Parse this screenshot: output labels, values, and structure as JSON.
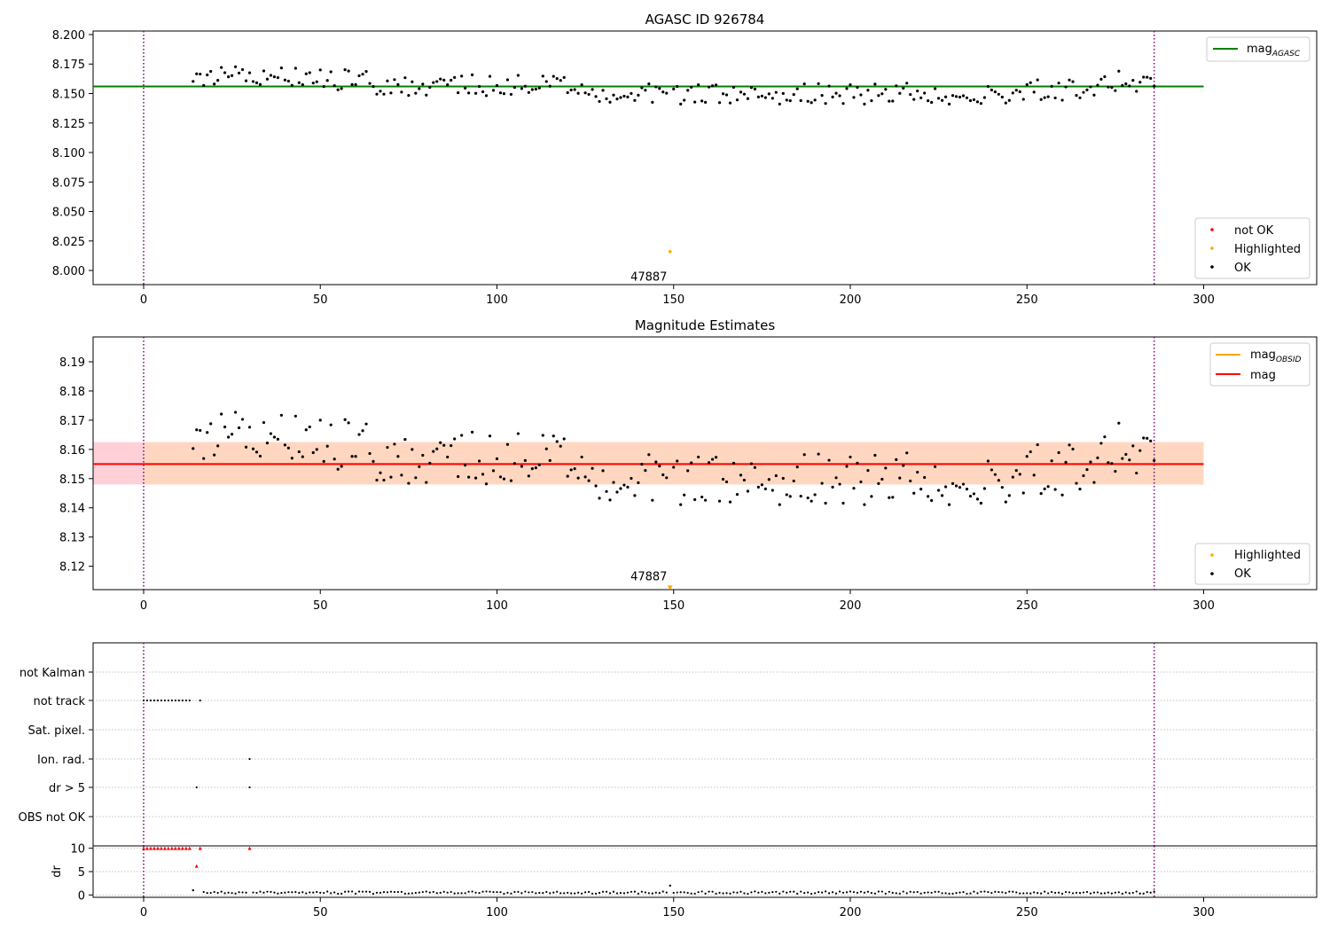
{
  "colors": {
    "ok": "#000000",
    "not_ok": "#ff0000",
    "highlighted": "#ffa500",
    "agasc_line": "#008000",
    "mag_line": "#ff0000",
    "obsid_line": "#ffa500",
    "band_outer": "#ffc0cb",
    "band_inner": "#ffdab9",
    "vline": "#800080",
    "grid": "#b0b0b0"
  },
  "chart_data": [
    {
      "type": "scatter",
      "title": "AGASC ID 926784",
      "xlim": [
        -14.3,
        332
      ],
      "ylim": [
        7.988,
        8.203
      ],
      "x_ticks": [
        0,
        50,
        100,
        150,
        200,
        250,
        300
      ],
      "y_ticks": [
        "8.000",
        "8.025",
        "8.050",
        "8.075",
        "8.100",
        "8.125",
        "8.150",
        "8.175",
        "8.200"
      ],
      "vlines": [
        0,
        286
      ],
      "hline": {
        "name": "mag_AGASC",
        "y": 8.156,
        "x": [
          -14.3,
          300
        ]
      },
      "series": [
        {
          "name": "not OK",
          "x": [],
          "y": []
        },
        {
          "name": "Highlighted",
          "x": [
            149
          ],
          "y": [
            8.016
          ]
        },
        {
          "name": "OK",
          "generator": "mag_series_A",
          "x_range": [
            14,
            286
          ]
        }
      ],
      "annotations": [
        {
          "text": "47887",
          "x": 149,
          "y": 7.998
        }
      ],
      "legend_top": {
        "position": "upper right",
        "items": [
          {
            "label": "mag",
            "sub": "AGASC",
            "color": "#008000"
          }
        ]
      },
      "legend_bottom": {
        "position": "lower right",
        "items": [
          "not OK",
          "Highlighted",
          "OK"
        ]
      }
    },
    {
      "type": "scatter",
      "title": "Magnitude Estimates",
      "xlim": [
        -14.3,
        332
      ],
      "ylim": [
        8.112,
        8.1985
      ],
      "x_ticks": [
        0,
        50,
        100,
        150,
        200,
        250,
        300
      ],
      "y_ticks": [
        "8.12",
        "8.13",
        "8.14",
        "8.15",
        "8.16",
        "8.17",
        "8.18",
        "8.19"
      ],
      "vlines": [
        0,
        286
      ],
      "bands": [
        {
          "x": [
            -14.3,
            300
          ],
          "y": [
            8.148,
            8.1625
          ],
          "color": "#ffc0cb"
        },
        {
          "x": [
            0,
            300
          ],
          "y": [
            8.148,
            8.1625
          ],
          "color": "#ffdab9"
        }
      ],
      "lines": [
        {
          "name": "mag_OBSID",
          "y": 8.155,
          "x": [
            0,
            300
          ],
          "color": "#ffa500"
        },
        {
          "name": "mag",
          "y": 8.155,
          "x": [
            -14.3,
            300
          ],
          "color": "#ff0000"
        }
      ],
      "series": [
        {
          "name": "Highlighted",
          "x": [
            149
          ],
          "y": [
            8.1125
          ]
        },
        {
          "name": "OK",
          "generator": "mag_series_A",
          "x_range": [
            14,
            286
          ]
        }
      ],
      "annotations": [
        {
          "text": "47887",
          "x": 149,
          "y": 8.114
        }
      ],
      "legend_top": {
        "position": "upper right",
        "items": [
          {
            "label": "mag",
            "sub": "OBSID",
            "color": "#ffa500"
          },
          {
            "label": "mag",
            "sub": "",
            "color": "#ff0000"
          }
        ]
      },
      "legend_bottom": {
        "position": "lower right",
        "items": [
          "Highlighted",
          "OK"
        ]
      }
    },
    {
      "type": "scatter",
      "title": "",
      "xlim": [
        -14.3,
        332
      ],
      "categories": [
        "OBS not OK",
        "dr > 5",
        "Ion. rad.",
        "Sat. pixel.",
        "not track",
        "not Kalman"
      ],
      "vlines": [
        0,
        286
      ],
      "flags": {
        "not track": [
          0,
          1,
          2,
          3,
          4,
          5,
          6,
          7,
          8,
          9,
          10,
          11,
          12,
          13,
          16
        ],
        "Ion. rad.": [
          30
        ],
        "dr > 5": [
          15,
          30
        ]
      }
    },
    {
      "type": "scatter",
      "title": "",
      "ylabel": "dr",
      "xlim": [
        -14.3,
        332
      ],
      "ylim": [
        -0.5,
        10.5
      ],
      "x_ticks": [
        0,
        50,
        100,
        150,
        200,
        250,
        300
      ],
      "y_ticks": [
        "0",
        "5",
        "10"
      ],
      "vlines": [
        0,
        286
      ],
      "red_points": {
        "x": [
          0,
          1,
          2,
          3,
          4,
          5,
          6,
          7,
          8,
          9,
          10,
          11,
          12,
          13,
          15,
          16,
          30
        ],
        "y": [
          10,
          10,
          10,
          10,
          10,
          10,
          10,
          10,
          10,
          10,
          10,
          10,
          10,
          10,
          6.2,
          10,
          10
        ]
      },
      "black_points": {
        "generator": "dr_series",
        "x_range": [
          14,
          286
        ],
        "extra": [
          {
            "x": 14,
            "y": 1.0
          },
          {
            "x": 149,
            "y": 2.0
          }
        ]
      }
    }
  ]
}
